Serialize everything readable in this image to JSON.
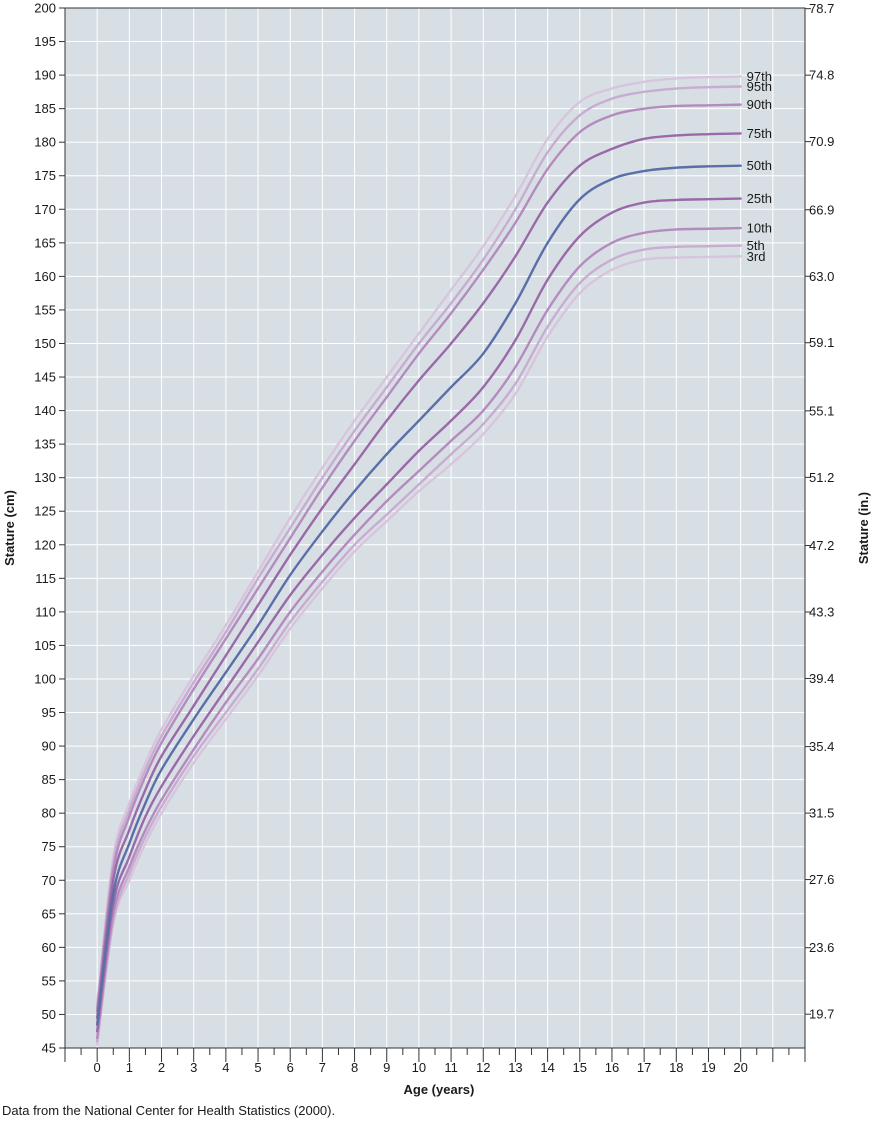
{
  "source_note": "Data from the National Center for Health Statistics (2000).",
  "chart_data": {
    "type": "line",
    "xlabel": "Age (years)",
    "ylabel": "Stature (cm)",
    "ylabel_right": "Stature (in.)",
    "xlim": [
      -1,
      22
    ],
    "ylim": [
      45,
      200
    ],
    "grid": true,
    "x_ticks": [
      "0",
      "1",
      "2",
      "3",
      "4",
      "5",
      "6",
      "7",
      "8",
      "9",
      "10",
      "11",
      "12",
      "13",
      "14",
      "15",
      "16",
      "17",
      "18",
      "19",
      "20"
    ],
    "y_ticks": [
      "200",
      "195",
      "190",
      "185",
      "180",
      "175",
      "170",
      "165",
      "160",
      "155",
      "150",
      "145",
      "140",
      "135",
      "130",
      "125",
      "120",
      "115",
      "110",
      "105",
      "100",
      "95",
      "90",
      "85",
      "80",
      "75",
      "70",
      "65",
      "60",
      "55",
      "50",
      "45"
    ],
    "y_ticks_right": [
      "78.7",
      "74.8",
      "70.9",
      "66.9",
      "63.0",
      "59.1",
      "55.1",
      "51.2",
      "47.2",
      "43.3",
      "39.4",
      "35.4",
      "31.5",
      "27.6",
      "23.6",
      "19.7"
    ],
    "colors": {
      "plot_bg": "#d7dfe5",
      "grid": "#ffffff",
      "series": [
        "#d8c4dc",
        "#c9acd1",
        "#b48bbe",
        "#9a6aa8",
        "#5a6fa8",
        "#9a6aa8",
        "#b48bbe",
        "#c9acd1",
        "#d8c4dc"
      ]
    },
    "x": [
      0,
      0.5,
      1,
      1.5,
      2,
      3,
      4,
      5,
      6,
      7,
      8,
      9,
      10,
      11,
      12,
      13,
      14,
      15,
      16,
      17,
      18,
      19,
      20
    ],
    "series": [
      {
        "name": "97th",
        "values": [
          51.5,
          73.5,
          81.5,
          87.5,
          92.5,
          100.5,
          108,
          116,
          124,
          131.5,
          138.5,
          145,
          151.5,
          158,
          164.5,
          172,
          180.5,
          186,
          188,
          189,
          189.5,
          189.7,
          189.8
        ]
      },
      {
        "name": "95th",
        "values": [
          51,
          72.5,
          80.5,
          86.5,
          91.5,
          99.5,
          107,
          115,
          122.5,
          130,
          137,
          143.5,
          150,
          156,
          162.5,
          170,
          178.5,
          184,
          186.5,
          187.5,
          188,
          188.2,
          188.3
        ]
      },
      {
        "name": "90th",
        "values": [
          50.5,
          71.5,
          79.5,
          85.5,
          90.5,
          98.5,
          106,
          113.5,
          121,
          128.5,
          135.5,
          142,
          148.5,
          154.5,
          161,
          168,
          176,
          181.5,
          184,
          185,
          185.4,
          185.5,
          185.6
        ]
      },
      {
        "name": "75th",
        "values": [
          49.5,
          70,
          77.5,
          83.5,
          88.5,
          96,
          103.5,
          111,
          118.5,
          125.5,
          132,
          138.5,
          144.5,
          150,
          156,
          163,
          171,
          176.5,
          179,
          180.5,
          181,
          181.2,
          181.3
        ]
      },
      {
        "name": "50th",
        "values": [
          48.5,
          68,
          75.5,
          81.5,
          86.5,
          94,
          101,
          108,
          115.5,
          122,
          128,
          133.5,
          138.5,
          143.5,
          148.5,
          156,
          165,
          171.5,
          174.5,
          175.7,
          176.2,
          176.4,
          176.5
        ]
      },
      {
        "name": "25th",
        "values": [
          47.5,
          66.5,
          73.5,
          79.5,
          84,
          91.5,
          98.5,
          105.5,
          112.5,
          118.5,
          124,
          129,
          134,
          138.5,
          143.5,
          150.5,
          159.5,
          166,
          169.5,
          171,
          171.4,
          171.5,
          171.6
        ]
      },
      {
        "name": "10th",
        "values": [
          46.5,
          65,
          72,
          77.5,
          82,
          89.5,
          96.5,
          103,
          110,
          116,
          121.5,
          126.5,
          131,
          135.5,
          140,
          146.5,
          155,
          161.5,
          165,
          166.5,
          167,
          167.1,
          167.2
        ]
      },
      {
        "name": "5th",
        "values": [
          46,
          64,
          71,
          76.5,
          81,
          88.5,
          95,
          101.5,
          108.5,
          114.5,
          120,
          124.5,
          129,
          133.5,
          138,
          144,
          152.5,
          159,
          162.5,
          164,
          164.4,
          164.5,
          164.6
        ]
      },
      {
        "name": "3rd",
        "values": [
          45.5,
          63.5,
          70,
          75.5,
          80,
          87.5,
          94,
          100.5,
          107.5,
          113.5,
          119,
          123.5,
          128,
          132,
          136.5,
          142.5,
          151,
          157.5,
          161,
          162.5,
          162.8,
          162.9,
          163
        ]
      }
    ]
  }
}
